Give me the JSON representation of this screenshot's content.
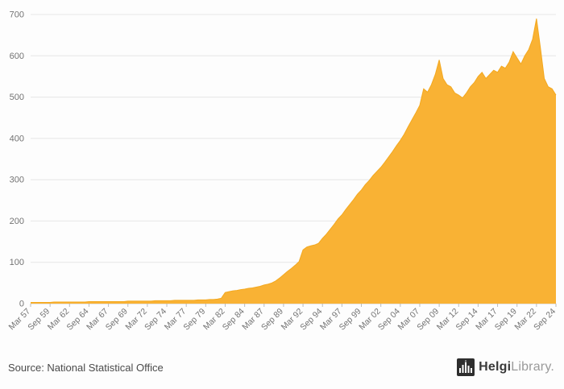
{
  "page": {
    "background": "#fdfdfd"
  },
  "footer": {
    "source": "Source: National Statistical Office",
    "logo": {
      "brand_bold": "Helgi",
      "brand_light": "Library.",
      "icon": "bar-building-icon"
    }
  },
  "chart_data": {
    "type": "area",
    "title": "",
    "xlabel": "",
    "ylabel": "",
    "legend": "none",
    "grid": "horizontal",
    "series_color": "#F9B234",
    "series_edge_color": "#F3A81F",
    "grid_color": "#e6e6e6",
    "axis_text_color": "#737373",
    "ylim": [
      0,
      700
    ],
    "yticks": [
      0,
      100,
      200,
      300,
      400,
      500,
      600,
      700
    ],
    "tick_every": 5,
    "x_tick_labels": [
      "Mar 57",
      "Sep 59",
      "Mar 62",
      "Sep 64",
      "Mar 67",
      "Sep 69",
      "Mar 72",
      "Sep 74",
      "Mar 77",
      "Sep 79",
      "Mar 82",
      "Sep 84",
      "Mar 87",
      "Sep 89",
      "Mar 92",
      "Sep 94",
      "Mar 97",
      "Sep 99",
      "Mar 02",
      "Sep 04",
      "Mar 07",
      "Sep 09",
      "Mar 12",
      "Sep 14",
      "Mar 17",
      "Sep 19",
      "Mar 22",
      "Sep 24"
    ],
    "frequency": "semi-annual",
    "values": [
      3,
      3,
      3,
      3,
      3,
      3,
      4,
      4,
      4,
      4,
      4,
      4,
      4,
      4,
      4,
      5,
      5,
      5,
      5,
      5,
      5,
      5,
      5,
      5,
      5,
      6,
      6,
      6,
      6,
      6,
      6,
      6,
      7,
      7,
      7,
      7,
      7,
      8,
      8,
      8,
      8,
      8,
      8,
      9,
      9,
      9,
      10,
      10,
      11,
      13,
      27,
      29,
      31,
      32,
      34,
      35,
      37,
      38,
      40,
      42,
      45,
      47,
      50,
      55,
      62,
      70,
      78,
      85,
      93,
      102,
      130,
      137,
      140,
      142,
      146,
      158,
      168,
      180,
      192,
      205,
      215,
      228,
      240,
      252,
      265,
      275,
      288,
      298,
      310,
      320,
      330,
      342,
      355,
      368,
      382,
      395,
      410,
      428,
      445,
      462,
      480,
      520,
      512,
      530,
      555,
      590,
      545,
      530,
      525,
      510,
      505,
      498,
      510,
      525,
      535,
      550,
      560,
      545,
      555,
      565,
      560,
      575,
      570,
      585,
      610,
      595,
      580,
      600,
      615,
      640,
      690,
      620,
      545,
      525,
      520,
      505
    ]
  }
}
